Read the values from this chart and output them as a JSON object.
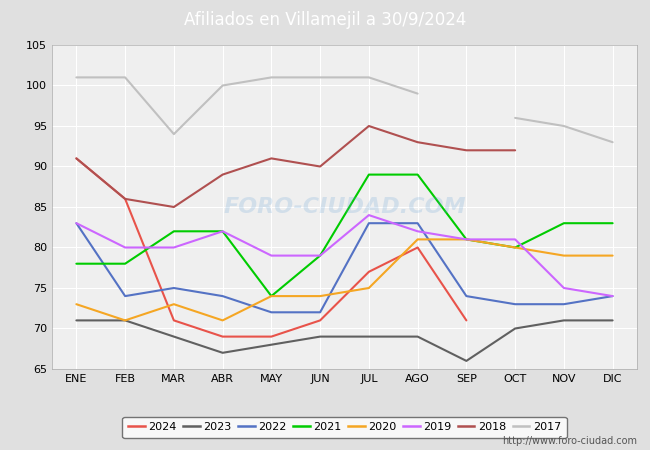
{
  "title": "Afiliados en Villamejil a 30/9/2024",
  "title_bg_color": "#5b9bd5",
  "ylim": [
    65,
    105
  ],
  "yticks": [
    65,
    70,
    75,
    80,
    85,
    90,
    95,
    100,
    105
  ],
  "months": [
    "ENE",
    "FEB",
    "MAR",
    "ABR",
    "MAY",
    "JUN",
    "JUL",
    "AGO",
    "SEP",
    "OCT",
    "NOV",
    "DIC"
  ],
  "series": {
    "2024": {
      "color": "#e8534a",
      "data": [
        91,
        86,
        71,
        69,
        69,
        71,
        77,
        80,
        71,
        null,
        null,
        null
      ]
    },
    "2023": {
      "color": "#606060",
      "data": [
        71,
        71,
        69,
        67,
        68,
        69,
        69,
        69,
        66,
        70,
        71,
        71
      ]
    },
    "2022": {
      "color": "#5472c4",
      "data": [
        83,
        74,
        75,
        74,
        72,
        72,
        83,
        83,
        74,
        73,
        73,
        74
      ]
    },
    "2021": {
      "color": "#00cc00",
      "data": [
        78,
        78,
        82,
        82,
        74,
        79,
        89,
        89,
        81,
        80,
        83,
        83
      ]
    },
    "2020": {
      "color": "#f5a623",
      "data": [
        73,
        71,
        73,
        71,
        74,
        74,
        75,
        81,
        81,
        80,
        79,
        79
      ]
    },
    "2019": {
      "color": "#cc66ff",
      "data": [
        83,
        80,
        80,
        82,
        79,
        79,
        84,
        82,
        81,
        81,
        75,
        74
      ]
    },
    "2018": {
      "color": "#b05050",
      "data": [
        91,
        86,
        85,
        89,
        91,
        90,
        95,
        93,
        92,
        92,
        null,
        null
      ]
    },
    "2017": {
      "color": "#c0c0c0",
      "data": [
        101,
        101,
        94,
        100,
        101,
        101,
        101,
        99,
        null,
        96,
        95,
        93
      ]
    }
  },
  "legend_order": [
    "2024",
    "2023",
    "2022",
    "2021",
    "2020",
    "2019",
    "2018",
    "2017"
  ],
  "watermark": "FORO-CIUDAD.COM",
  "url": "http://www.foro-ciudad.com",
  "bg_color": "#e0e0e0",
  "plot_bg_color": "#efefef",
  "grid_color": "#ffffff"
}
